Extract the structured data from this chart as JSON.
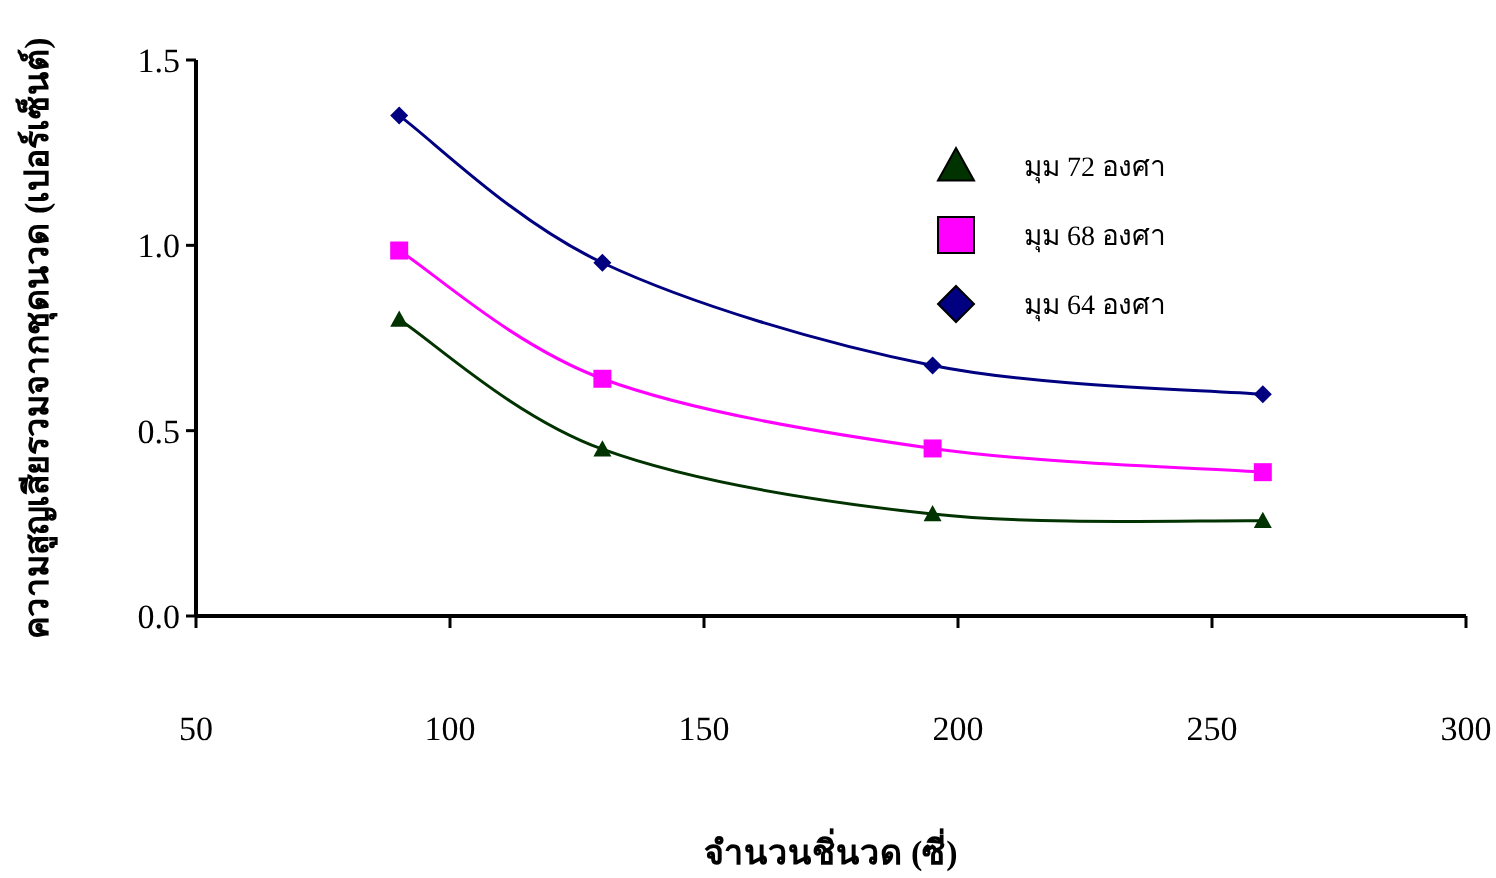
{
  "chart_data": {
    "type": "line",
    "xlabel": "จำนวนชิ่นวด (ซี่)",
    "ylabel": "ความสูญเสียรวมจากชุดนวด (เปอร์เซ็นต์)",
    "xlim": [
      50,
      300
    ],
    "xticks": [
      50,
      100,
      150,
      200,
      250,
      300
    ],
    "ylim": [
      0,
      1.5
    ],
    "yticks": [
      {
        "value": 0,
        "label": "0.0"
      },
      {
        "value": 0.5,
        "label": "0.5"
      },
      {
        "value": 1,
        "label": "1.0"
      },
      {
        "value": 1.5,
        "label": "1.5"
      }
    ],
    "x": [
      90,
      130,
      195,
      260
    ],
    "legend": "top right",
    "grid": false,
    "line_style": "solid",
    "series": [
      {
        "name": "มุม 72 องศา",
        "color": "#003300",
        "marker": "triangle",
        "values": [
          0.8,
          0.45,
          0.275,
          0.257
        ]
      },
      {
        "name": "มุม 68 องศา",
        "color": "#ff00ff",
        "marker": "square",
        "values": [
          0.986,
          0.64,
          0.452,
          0.388
        ]
      },
      {
        "name": "มุม 64 องศา",
        "color": "#000080",
        "marker": "diamond",
        "values": [
          1.35,
          0.953,
          0.676,
          0.598
        ]
      }
    ]
  }
}
